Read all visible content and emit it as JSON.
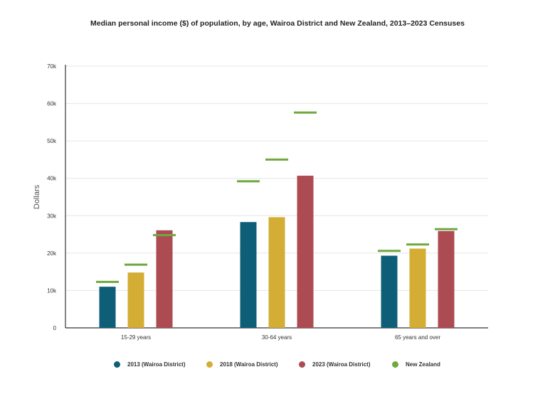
{
  "chart_data": {
    "type": "bar",
    "title": "Median personal income ($) of population, by age, Wairoa District and New Zealand, 2013–2023 Censuses",
    "xlabel": "",
    "ylabel": "Dollars",
    "categories": [
      "15-29 years",
      "30-64 years",
      "65 years and over"
    ],
    "ylim": [
      0,
      70000
    ],
    "yticks": [
      0,
      10000,
      20000,
      30000,
      40000,
      50000,
      60000,
      70000
    ],
    "ytick_labels": [
      "0",
      "10k",
      "20k",
      "30k",
      "40k",
      "50k",
      "60k",
      "70k"
    ],
    "grid": true,
    "legend_position": "bottom",
    "series": [
      {
        "name": "2013 (Wairoa District)",
        "kind": "bar",
        "color": "#0e5e78",
        "values": [
          11000,
          28300,
          19300
        ]
      },
      {
        "name": "2018 (Wairoa District)",
        "kind": "bar",
        "color": "#d4ad35",
        "values": [
          14800,
          29600,
          21200
        ]
      },
      {
        "name": "2023 (Wairoa District)",
        "kind": "bar",
        "color": "#ad4b52",
        "values": [
          26100,
          40700,
          25900
        ]
      },
      {
        "name": "New Zealand",
        "kind": "marker",
        "color": "#6fa83f",
        "values": [
          [
            12300,
            16900,
            24800
          ],
          [
            39200,
            45000,
            57600
          ],
          [
            20600,
            22300,
            26400
          ]
        ]
      }
    ]
  }
}
